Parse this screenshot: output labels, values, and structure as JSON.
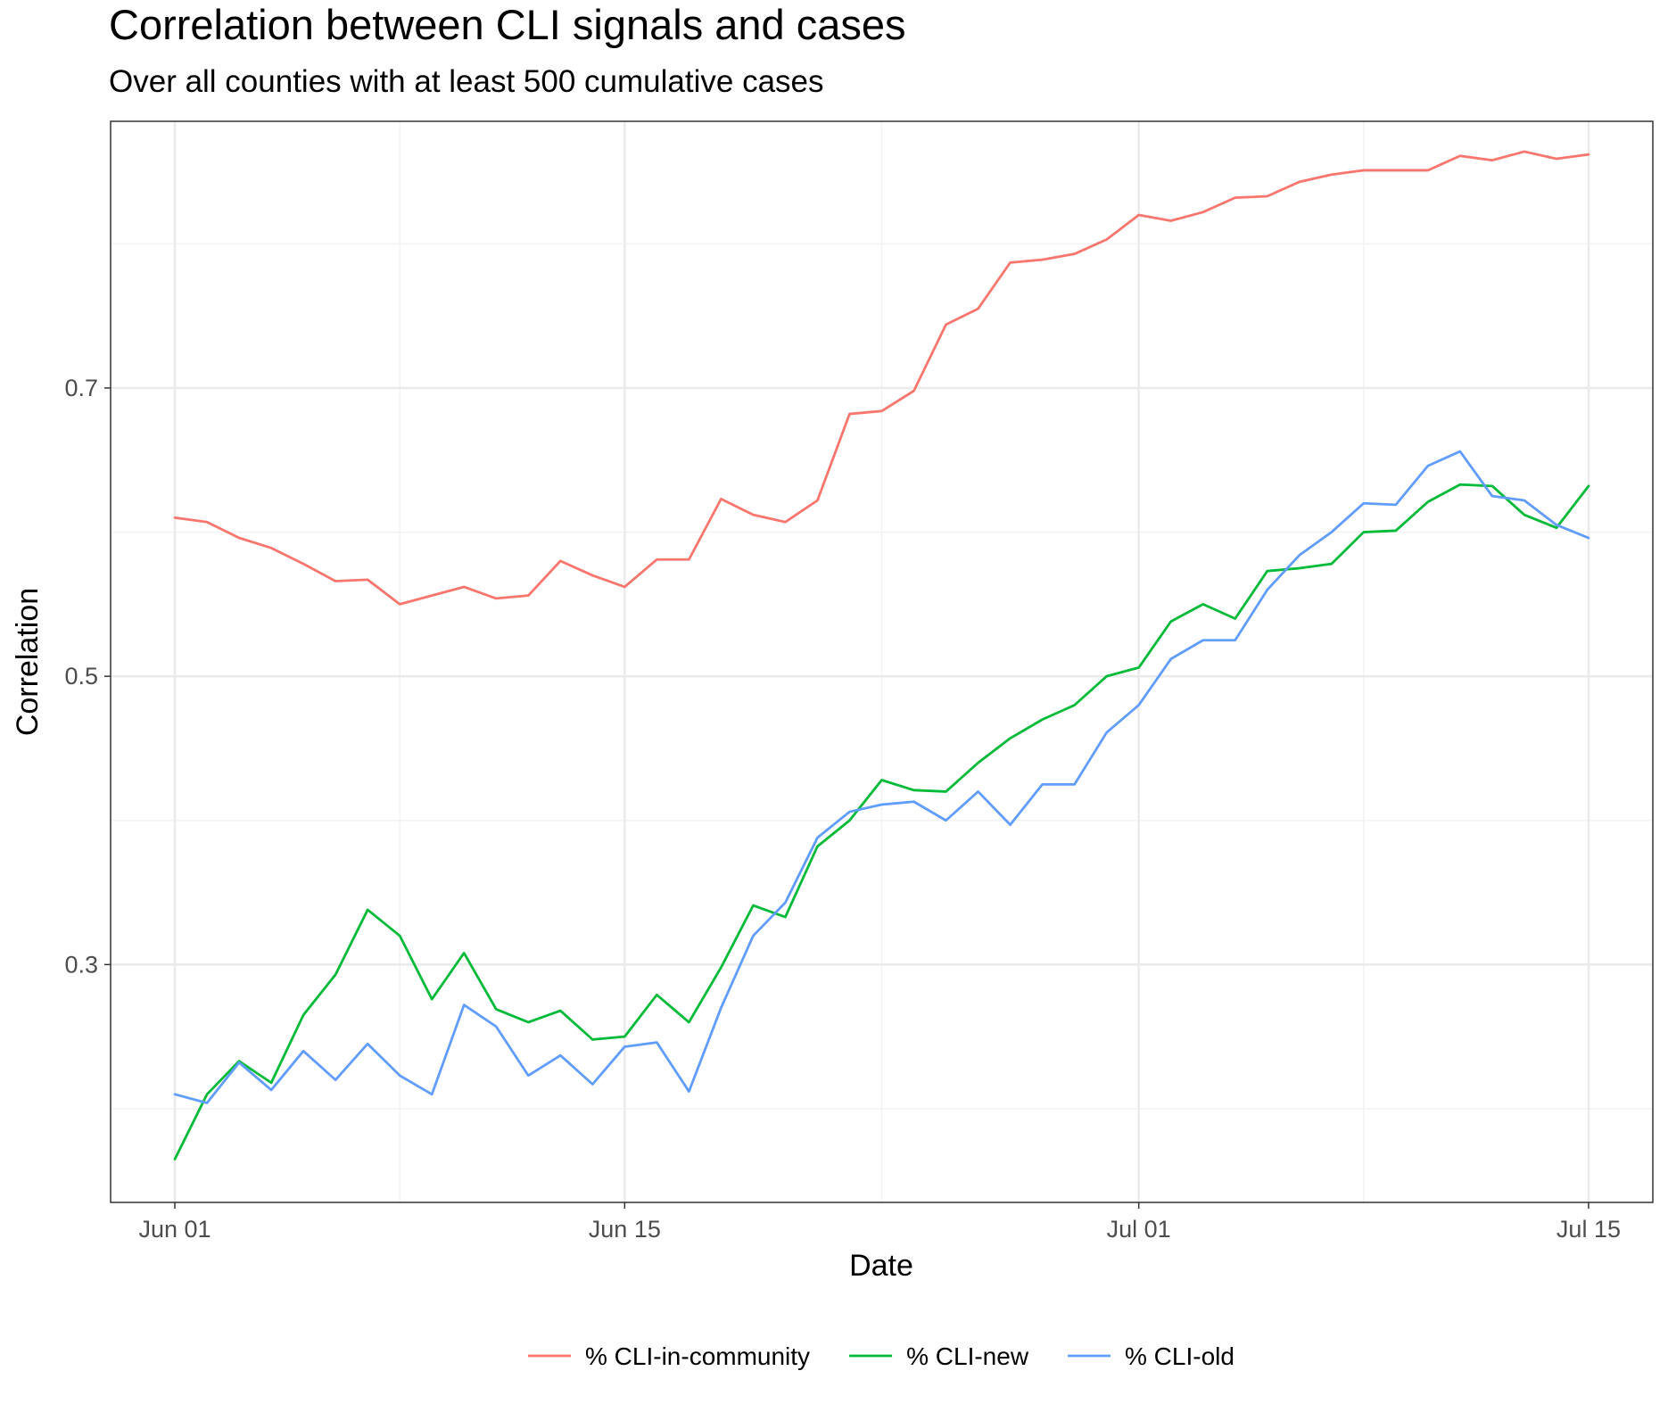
{
  "chart_data": {
    "type": "line",
    "title": "Correlation between CLI signals and cases",
    "subtitle": "Over all counties with at least 500 cumulative cases",
    "xlabel": "Date",
    "ylabel": "Correlation",
    "x_start": "2020-06-01",
    "x_end": "2020-07-15",
    "xlim": [
      "2020-05-30",
      "2020-07-17"
    ],
    "ylim": [
      0.135,
      0.885
    ],
    "x_ticks": [
      {
        "date": "2020-06-01",
        "label": "Jun 01"
      },
      {
        "date": "2020-06-15",
        "label": "Jun 15"
      },
      {
        "date": "2020-07-01",
        "label": "Jul 01"
      },
      {
        "date": "2020-07-15",
        "label": "Jul 15"
      }
    ],
    "y_ticks": [
      {
        "value": 0.3,
        "label": "0.3"
      },
      {
        "value": 0.5,
        "label": "0.5"
      },
      {
        "value": 0.7,
        "label": "0.7"
      }
    ],
    "y_minor_ticks": [
      0.2,
      0.4,
      0.6,
      0.8
    ],
    "x_minor_ticks": [
      "2020-06-08",
      "2020-06-23",
      "2020-07-08"
    ],
    "grid": true,
    "legend_position": "bottom",
    "series": [
      {
        "name": "% CLI-in-community",
        "color": "#F8766D",
        "values": [
          0.61,
          0.607,
          0.596,
          0.589,
          0.578,
          0.566,
          0.567,
          0.55,
          0.556,
          0.562,
          0.554,
          0.556,
          0.58,
          0.57,
          0.562,
          0.581,
          0.581,
          0.623,
          0.612,
          0.607,
          0.622,
          0.682,
          0.684,
          0.698,
          0.744,
          0.755,
          0.787,
          0.789,
          0.793,
          0.803,
          0.82,
          0.816,
          0.822,
          0.832,
          0.833,
          0.843,
          0.848,
          0.851,
          0.851,
          0.851,
          0.861,
          0.858,
          0.864,
          0.859,
          0.862
        ]
      },
      {
        "name": "% CLI-new",
        "color": "#00BA38",
        "values": [
          0.165,
          0.21,
          0.233,
          0.218,
          0.265,
          0.293,
          0.338,
          0.32,
          0.276,
          0.308,
          0.269,
          0.26,
          0.268,
          0.248,
          0.25,
          0.279,
          0.26,
          0.298,
          0.341,
          0.333,
          0.382,
          0.4,
          0.428,
          0.421,
          0.42,
          0.44,
          0.457,
          0.47,
          0.48,
          0.5,
          0.506,
          0.538,
          0.55,
          0.54,
          0.573,
          0.575,
          0.578,
          0.6,
          0.601,
          0.621,
          0.633,
          0.632,
          0.612,
          0.603,
          0.632
        ]
      },
      {
        "name": "% CLI-old",
        "color": "#619CFF",
        "values": [
          0.21,
          0.204,
          0.232,
          0.213,
          0.24,
          0.22,
          0.245,
          0.223,
          0.21,
          0.272,
          0.257,
          0.223,
          0.237,
          0.217,
          0.243,
          0.246,
          0.212,
          0.27,
          0.32,
          0.343,
          0.388,
          0.406,
          0.411,
          0.413,
          0.4,
          0.42,
          0.397,
          0.425,
          0.425,
          0.461,
          0.48,
          0.512,
          0.525,
          0.525,
          0.56,
          0.584,
          0.6,
          0.62,
          0.619,
          0.646,
          0.656,
          0.625,
          0.622,
          0.605,
          0.596
        ]
      }
    ]
  }
}
